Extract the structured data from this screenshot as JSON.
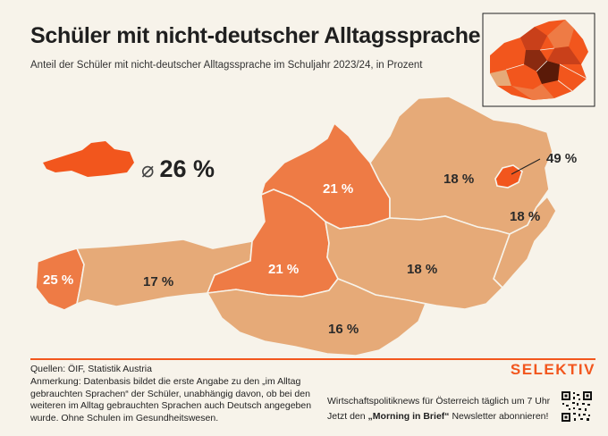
{
  "header": {
    "title": "Schüler mit nicht-deutscher Alltagssprache",
    "subtitle": "Anteil der Schüler mit nicht-deutscher Alltagssprache im Schuljahr 2023/24, in Prozent"
  },
  "average": {
    "symbol": "⌀",
    "value": "26 %"
  },
  "regions": [
    {
      "name": "Vorarlberg",
      "label": "25 %",
      "value": 25
    },
    {
      "name": "Tirol",
      "label": "17 %",
      "value": 17
    },
    {
      "name": "Salzburg",
      "label": "21 %",
      "value": 21
    },
    {
      "name": "Oberösterreich",
      "label": "21 %",
      "value": 21
    },
    {
      "name": "Niederösterreich",
      "label": "18 %",
      "value": 18
    },
    {
      "name": "Wien",
      "label": "49 %",
      "value": 49
    },
    {
      "name": "Burgenland",
      "label": "18 %",
      "value": 18
    },
    {
      "name": "Steiermark",
      "label": "18 %",
      "value": 18
    },
    {
      "name": "Kärnten",
      "label": "16 %",
      "value": 16
    }
  ],
  "colors": {
    "low": "#e6aa78",
    "mid": "#ee7b45",
    "high": "#f2561d",
    "brand": "#f2561d",
    "background": "#f7f3ea"
  },
  "footer": {
    "sources": "Quellen: ÖIF, Statistik Austria",
    "note": "Anmerkung: Datenbasis bildet die erste Angabe zu den „im Alltag gebrauchten Sprachen“ der Schüler, unabhängig davon, ob bei den weiteren im Alltag gebrauchten Sprachen auch Deutsch angegeben wurde. Ohne Schulen im Gesundheitswesen.",
    "brand": "SELEKTIV",
    "promo_line1": "Wirtschaftspolitiknews für Österreich täglich um 7 Uhr",
    "promo_line2_prefix": "Jetzt den ",
    "promo_line2_bold": "„Morning in Brief“",
    "promo_line2_suffix": " Newsletter abonnieren!"
  }
}
